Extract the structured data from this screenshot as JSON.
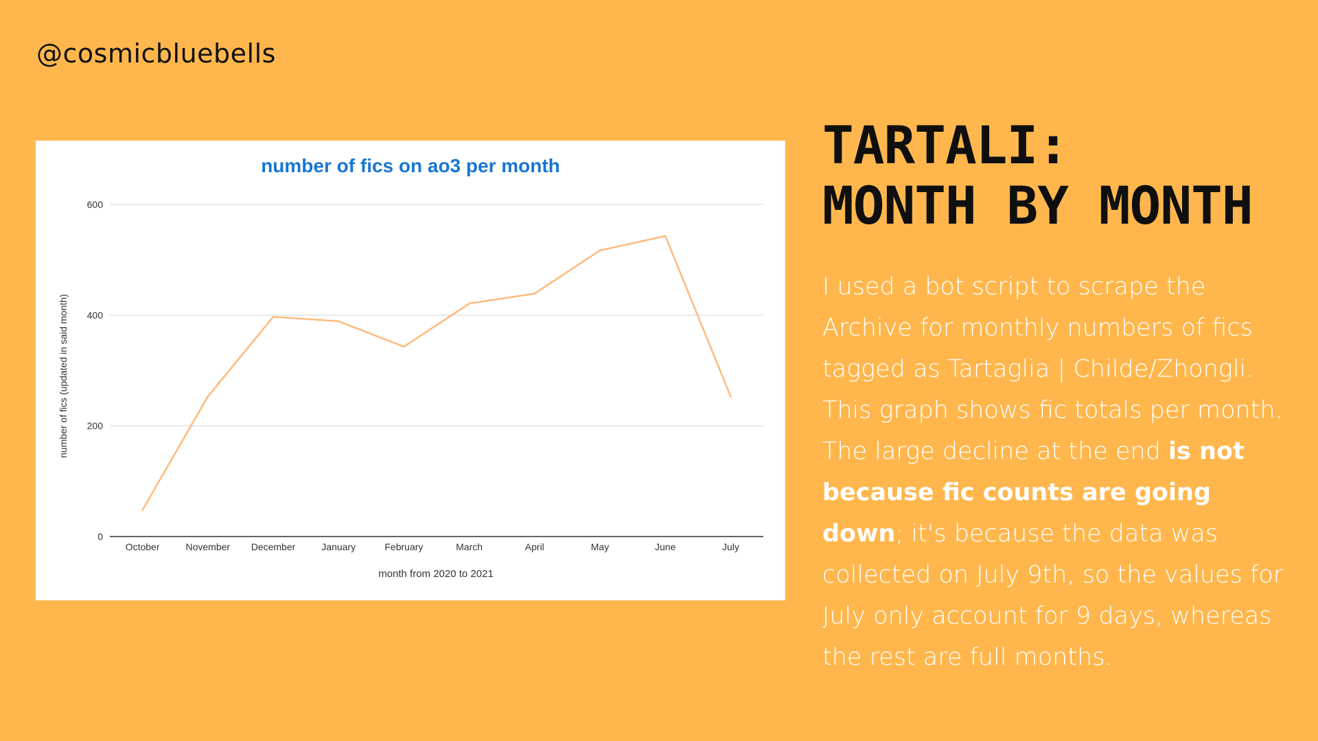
{
  "handle": "@cosmicbluebells",
  "headline": {
    "line1": "TARTALI:",
    "line2": "MONTH BY MONTH"
  },
  "body": {
    "part1": "I used a bot script to scrape the Archive for monthly numbers of fics tagged as Tartaglia | Childe/Zhongli. This graph shows fic totals per month. The large decline at the end ",
    "emphasis": "is not because fic counts are going down",
    "part2": "; it's because the data was collected on July 9th, so the values for July only account for 9 days, whereas the rest are full months."
  },
  "colors": {
    "background": "#FFB74D",
    "title": "#1976D2",
    "line": "#FFBB80",
    "grid": "#D9D9D9",
    "axis": "#333333",
    "body_text": "#FFFFFF"
  },
  "chart_data": {
    "type": "line",
    "title": "number of fics on ao3 per month",
    "xlabel": "month from 2020 to 2021",
    "ylabel": "number of fics (updated in said month)",
    "categories": [
      "October",
      "November",
      "December",
      "January",
      "February",
      "March",
      "April",
      "May",
      "June",
      "July"
    ],
    "series": [
      {
        "values": [
          48,
          253,
          397,
          389,
          343,
          421,
          439,
          517,
          543,
          253
        ]
      }
    ],
    "ylim": [
      0,
      600
    ],
    "yticks": [
      0,
      200,
      400,
      600
    ],
    "grid": true,
    "legend": "none"
  }
}
